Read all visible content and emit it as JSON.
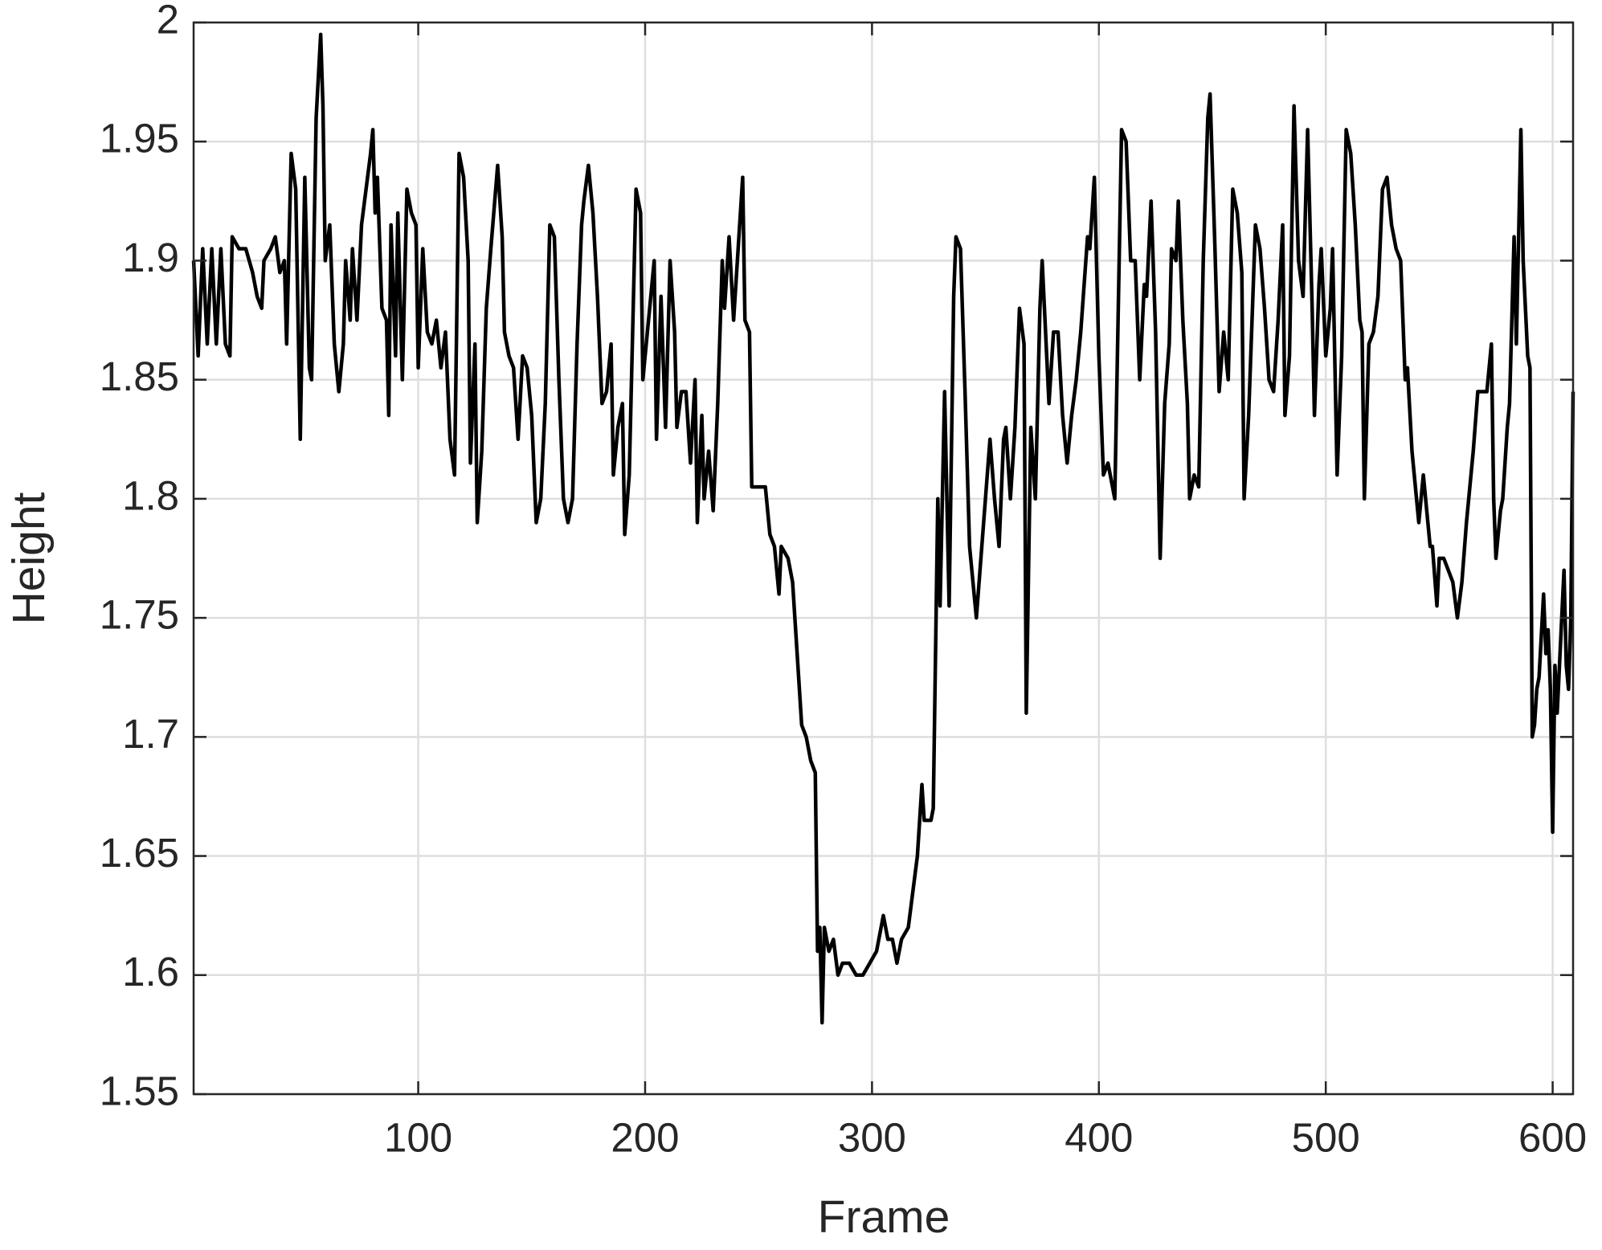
{
  "chart_data": {
    "type": "line",
    "xlabel": "Frame",
    "ylabel": "Height",
    "xlim": [
      1,
      609
    ],
    "ylim": [
      1.55,
      2
    ],
    "xticks": [
      100,
      200,
      300,
      400,
      500,
      600
    ],
    "yticks": [
      1.55,
      1.6,
      1.65,
      1.7,
      1.75,
      1.8,
      1.85,
      1.9,
      1.95,
      2
    ],
    "grid": true,
    "x": [
      1,
      3,
      5,
      7,
      9,
      11,
      13,
      15,
      17,
      18,
      21,
      24,
      27,
      29,
      31,
      32,
      35,
      37,
      39,
      41,
      42,
      44,
      46,
      48,
      50,
      52,
      53,
      55,
      57,
      58,
      59,
      61,
      63,
      65,
      67,
      68,
      70,
      71,
      73,
      75,
      77,
      79,
      80,
      81,
      82,
      84,
      86,
      87,
      88,
      90,
      91,
      93,
      95,
      97,
      99,
      100,
      102,
      104,
      106,
      108,
      110,
      112,
      114,
      116,
      118,
      120,
      122,
      123,
      125,
      126,
      128,
      130,
      132,
      135,
      137,
      138,
      140,
      142,
      144,
      146,
      148,
      150,
      152,
      154,
      156,
      158,
      160,
      162,
      164,
      166,
      168,
      170,
      172,
      173,
      175,
      177,
      179,
      181,
      183,
      185,
      186,
      188,
      190,
      191,
      193,
      196,
      198,
      199,
      201,
      204,
      205,
      207,
      209,
      211,
      213,
      214,
      216,
      218,
      220,
      222,
      223,
      225,
      226,
      228,
      230,
      232,
      234,
      235,
      237,
      239,
      241,
      243,
      244,
      246,
      247,
      250,
      253,
      255,
      257,
      259,
      260,
      263,
      265,
      267,
      269,
      271,
      273,
      275,
      276,
      277,
      278,
      279,
      281,
      283,
      285,
      287,
      290,
      293,
      296,
      299,
      302,
      305,
      307,
      309,
      311,
      313,
      316,
      318,
      320,
      322,
      323,
      326,
      327,
      329,
      330,
      332,
      334,
      336,
      337,
      339,
      341,
      343,
      346,
      348,
      350,
      352,
      354,
      356,
      358,
      359,
      361,
      363,
      365,
      367,
      368,
      370,
      372,
      374,
      375,
      378,
      380,
      382,
      384,
      386,
      388,
      390,
      392,
      395,
      396,
      398,
      400,
      402,
      404,
      407,
      410,
      412,
      414,
      416,
      418,
      420,
      421,
      423,
      425,
      427,
      429,
      431,
      432,
      434,
      435,
      437,
      439,
      440,
      442,
      444,
      446,
      448,
      449,
      451,
      453,
      455,
      457,
      459,
      461,
      463,
      464,
      466,
      469,
      471,
      473,
      475,
      477,
      479,
      481,
      482,
      484,
      486,
      488,
      490,
      492,
      494,
      495,
      497,
      498,
      500,
      502,
      503,
      505,
      507,
      509,
      511,
      513,
      515,
      516,
      517,
      519,
      521,
      523,
      525,
      527,
      529,
      531,
      533,
      535,
      536,
      538,
      540,
      541,
      543,
      544,
      546,
      547,
      549,
      550,
      552,
      554,
      556,
      558,
      560,
      562,
      563,
      565,
      567,
      569,
      571,
      573,
      574,
      575,
      577,
      578,
      580,
      581,
      583,
      584,
      586,
      587,
      589,
      590,
      591,
      592,
      593,
      594,
      596,
      597,
      598,
      599,
      600,
      601,
      602,
      603,
      605,
      606,
      607,
      608,
      609
    ],
    "series": [
      {
        "name": "Height",
        "color": "#000000",
        "values": [
          1.9,
          1.86,
          1.905,
          1.865,
          1.905,
          1.865,
          1.905,
          1.865,
          1.86,
          1.91,
          1.905,
          1.905,
          1.895,
          1.885,
          1.88,
          1.9,
          1.905,
          1.91,
          1.895,
          1.9,
          1.865,
          1.945,
          1.93,
          1.825,
          1.935,
          1.855,
          1.85,
          1.96,
          1.995,
          1.965,
          1.9,
          1.915,
          1.865,
          1.845,
          1.865,
          1.9,
          1.875,
          1.905,
          1.875,
          1.915,
          1.93,
          1.945,
          1.955,
          1.92,
          1.935,
          1.88,
          1.875,
          1.835,
          1.915,
          1.86,
          1.92,
          1.85,
          1.93,
          1.92,
          1.915,
          1.855,
          1.905,
          1.87,
          1.865,
          1.875,
          1.855,
          1.87,
          1.825,
          1.81,
          1.945,
          1.935,
          1.9,
          1.815,
          1.865,
          1.79,
          1.82,
          1.88,
          1.905,
          1.94,
          1.91,
          1.87,
          1.86,
          1.855,
          1.825,
          1.86,
          1.855,
          1.835,
          1.79,
          1.8,
          1.84,
          1.915,
          1.91,
          1.85,
          1.8,
          1.79,
          1.8,
          1.865,
          1.915,
          1.925,
          1.94,
          1.92,
          1.885,
          1.84,
          1.845,
          1.865,
          1.81,
          1.83,
          1.84,
          1.785,
          1.81,
          1.93,
          1.92,
          1.85,
          1.87,
          1.9,
          1.825,
          1.885,
          1.83,
          1.9,
          1.87,
          1.83,
          1.845,
          1.845,
          1.815,
          1.85,
          1.79,
          1.835,
          1.8,
          1.82,
          1.795,
          1.84,
          1.9,
          1.88,
          1.91,
          1.875,
          1.905,
          1.935,
          1.875,
          1.87,
          1.805,
          1.805,
          1.805,
          1.785,
          1.78,
          1.76,
          1.78,
          1.775,
          1.765,
          1.735,
          1.705,
          1.7,
          1.69,
          1.685,
          1.61,
          1.62,
          1.58,
          1.62,
          1.61,
          1.615,
          1.6,
          1.605,
          1.605,
          1.6,
          1.6,
          1.605,
          1.61,
          1.625,
          1.615,
          1.615,
          1.605,
          1.615,
          1.62,
          1.635,
          1.65,
          1.68,
          1.665,
          1.665,
          1.67,
          1.8,
          1.755,
          1.845,
          1.755,
          1.885,
          1.91,
          1.905,
          1.845,
          1.78,
          1.75,
          1.775,
          1.8,
          1.825,
          1.8,
          1.78,
          1.825,
          1.83,
          1.8,
          1.83,
          1.88,
          1.865,
          1.71,
          1.83,
          1.8,
          1.88,
          1.9,
          1.84,
          1.87,
          1.87,
          1.835,
          1.815,
          1.835,
          1.85,
          1.87,
          1.91,
          1.905,
          1.935,
          1.86,
          1.81,
          1.815,
          1.8,
          1.955,
          1.95,
          1.9,
          1.9,
          1.85,
          1.89,
          1.885,
          1.925,
          1.87,
          1.775,
          1.84,
          1.865,
          1.905,
          1.9,
          1.925,
          1.875,
          1.84,
          1.8,
          1.81,
          1.805,
          1.9,
          1.96,
          1.97,
          1.91,
          1.845,
          1.87,
          1.85,
          1.93,
          1.92,
          1.895,
          1.8,
          1.835,
          1.915,
          1.905,
          1.88,
          1.85,
          1.845,
          1.875,
          1.915,
          1.835,
          1.86,
          1.965,
          1.9,
          1.885,
          1.955,
          1.88,
          1.835,
          1.89,
          1.905,
          1.86,
          1.88,
          1.905,
          1.81,
          1.86,
          1.955,
          1.945,
          1.915,
          1.875,
          1.87,
          1.8,
          1.865,
          1.87,
          1.885,
          1.93,
          1.935,
          1.915,
          1.905,
          1.9,
          1.85,
          1.855,
          1.82,
          1.8,
          1.79,
          1.81,
          1.8,
          1.78,
          1.78,
          1.755,
          1.775,
          1.775,
          1.77,
          1.765,
          1.75,
          1.765,
          1.79,
          1.8,
          1.82,
          1.845,
          1.845,
          1.845,
          1.865,
          1.8,
          1.775,
          1.795,
          1.8,
          1.83,
          1.84,
          1.91,
          1.865,
          1.955,
          1.9,
          1.86,
          1.855,
          1.7,
          1.705,
          1.72,
          1.725,
          1.76,
          1.735,
          1.745,
          1.72,
          1.66,
          1.73,
          1.71,
          1.73,
          1.77,
          1.73,
          1.72,
          1.75,
          1.845
        ]
      }
    ]
  }
}
